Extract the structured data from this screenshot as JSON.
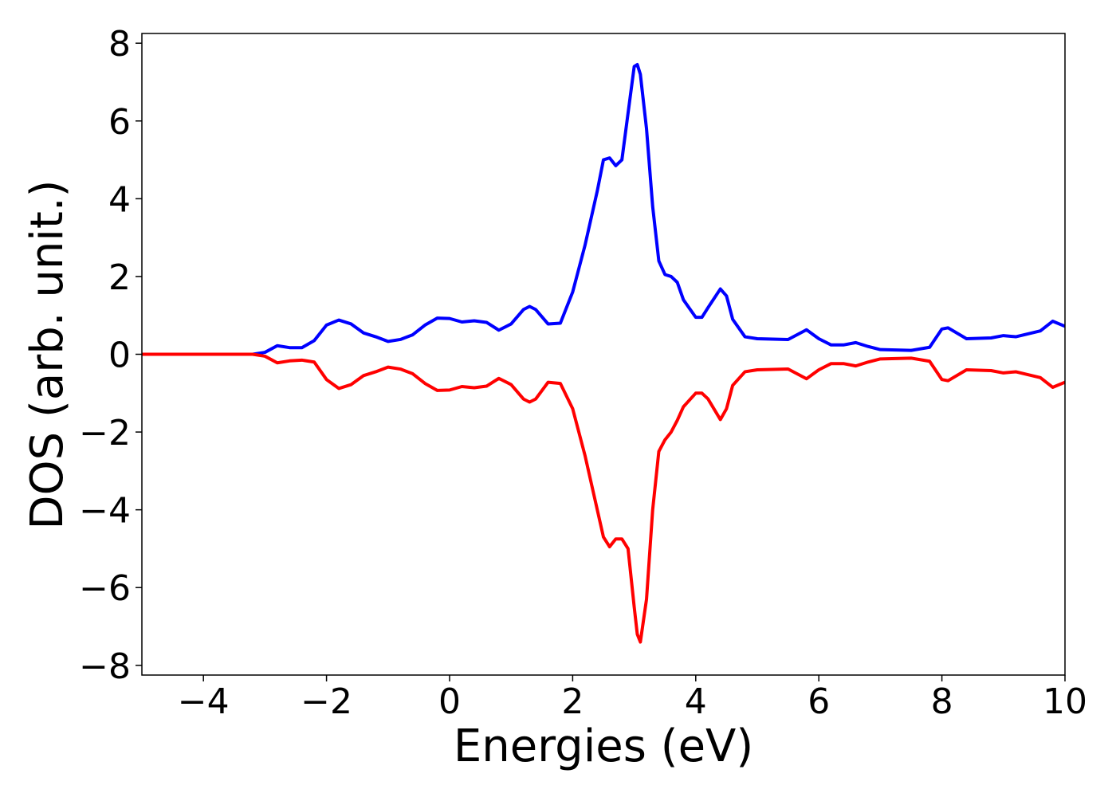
{
  "chart_data": {
    "type": "line",
    "xlabel": "Energies (eV)",
    "ylabel": "DOS (arb. unit.)",
    "x": [
      -5,
      -4,
      -3.2,
      -3.0,
      -2.8,
      -2.6,
      -2.4,
      -2.2,
      -2.0,
      -1.8,
      -1.6,
      -1.4,
      -1.2,
      -1.0,
      -0.8,
      -0.6,
      -0.4,
      -0.2,
      0,
      0.2,
      0.4,
      0.6,
      0.8,
      1.0,
      1.2,
      1.3,
      1.4,
      1.6,
      1.8,
      2.0,
      2.2,
      2.4,
      2.5,
      2.6,
      2.7,
      2.8,
      2.9,
      3.0,
      3.05,
      3.1,
      3.2,
      3.3,
      3.4,
      3.5,
      3.6,
      3.7,
      3.8,
      4.0,
      4.1,
      4.2,
      4.4,
      4.5,
      4.6,
      4.8,
      5.0,
      5.5,
      5.8,
      6.0,
      6.2,
      6.4,
      6.6,
      6.8,
      7.0,
      7.5,
      7.8,
      8.0,
      8.1,
      8.4,
      8.8,
      9.0,
      9.2,
      9.6,
      9.8,
      10
    ],
    "series": [
      {
        "color": "#0000ff",
        "values": [
          0,
          0,
          0,
          0.05,
          0.22,
          0.17,
          0.17,
          0.35,
          0.75,
          0.88,
          0.78,
          0.55,
          0.45,
          0.33,
          0.38,
          0.5,
          0.75,
          0.93,
          0.92,
          0.83,
          0.86,
          0.82,
          0.62,
          0.78,
          1.15,
          1.23,
          1.15,
          0.78,
          0.8,
          1.6,
          2.8,
          4.2,
          5.0,
          5.05,
          4.85,
          5.0,
          6.2,
          7.4,
          7.45,
          7.2,
          5.8,
          3.8,
          2.4,
          2.05,
          2.0,
          1.85,
          1.4,
          0.95,
          0.95,
          1.2,
          1.68,
          1.5,
          0.9,
          0.45,
          0.4,
          0.38,
          0.63,
          0.4,
          0.24,
          0.24,
          0.3,
          0.2,
          0.12,
          0.1,
          0.18,
          0.65,
          0.68,
          0.4,
          0.42,
          0.48,
          0.45,
          0.6,
          0.85,
          0.72
        ]
      },
      {
        "color": "#ff0000",
        "values": [
          0,
          0,
          0,
          -0.05,
          -0.22,
          -0.17,
          -0.15,
          -0.2,
          -0.65,
          -0.88,
          -0.78,
          -0.55,
          -0.45,
          -0.33,
          -0.38,
          -0.5,
          -0.75,
          -0.93,
          -0.92,
          -0.83,
          -0.86,
          -0.82,
          -0.62,
          -0.78,
          -1.15,
          -1.23,
          -1.15,
          -0.72,
          -0.75,
          -1.4,
          -2.6,
          -4.0,
          -4.7,
          -4.95,
          -4.75,
          -4.75,
          -5.0,
          -6.5,
          -7.2,
          -7.4,
          -6.3,
          -4.0,
          -2.5,
          -2.2,
          -2.0,
          -1.7,
          -1.35,
          -1.0,
          -1.0,
          -1.15,
          -1.68,
          -1.4,
          -0.8,
          -0.45,
          -0.4,
          -0.38,
          -0.63,
          -0.4,
          -0.24,
          -0.24,
          -0.3,
          -0.2,
          -0.12,
          -0.1,
          -0.18,
          -0.65,
          -0.68,
          -0.4,
          -0.42,
          -0.48,
          -0.45,
          -0.6,
          -0.85,
          -0.72
        ]
      }
    ],
    "xlim": [
      -5,
      10
    ],
    "xticks": [
      {
        "value": -4,
        "label": "−4"
      },
      {
        "value": -2,
        "label": "−2"
      },
      0,
      2,
      4,
      6,
      8,
      10
    ],
    "ylim": [
      -8.25,
      8.25
    ],
    "yticks": [
      {
        "value": -8,
        "label": "−8"
      },
      {
        "value": -6,
        "label": "−6"
      },
      {
        "value": -4,
        "label": "−4"
      },
      {
        "value": -2,
        "label": "−2"
      },
      0,
      2,
      4,
      6,
      8
    ],
    "grid": false
  }
}
